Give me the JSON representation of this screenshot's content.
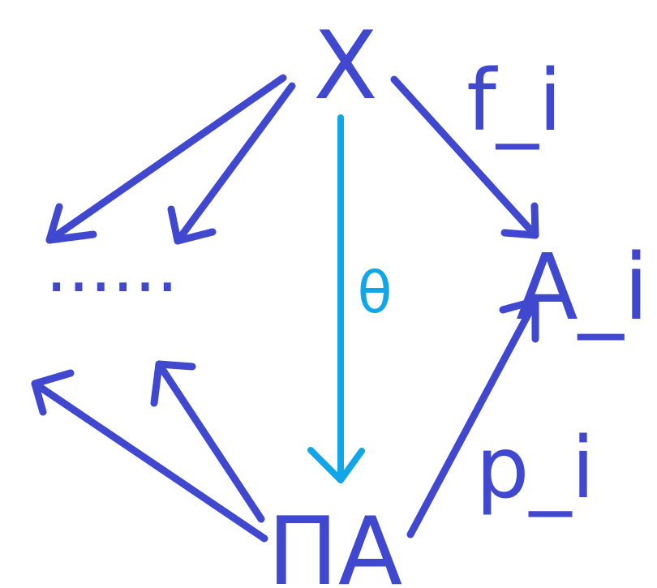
{
  "diagram": {
    "nodes": {
      "x": "X",
      "a_i": "A_i",
      "product": "ΠA",
      "ellipsis": "......"
    },
    "labels": {
      "f_i": "f_i",
      "p_i": "p_i",
      "theta": "θ"
    }
  },
  "colors": {
    "main": "#4048d0",
    "theta": "#10a6e8",
    "background": "#ffffff"
  }
}
